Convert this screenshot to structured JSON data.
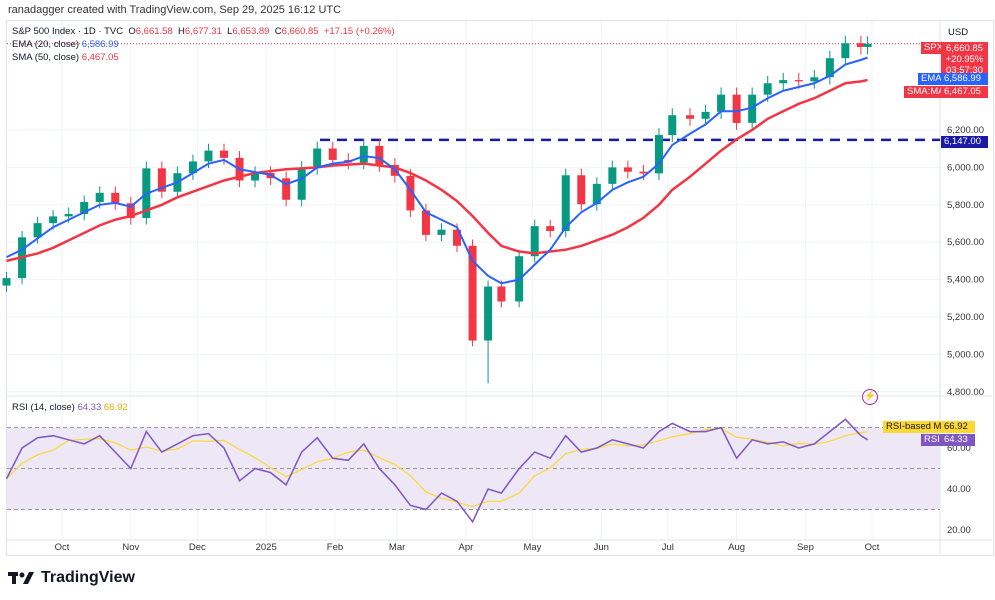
{
  "credit": "ranadagger created with TradingView.com, Sep 29, 2025 16:12 UTC",
  "legend": {
    "symbol": "S&P 500 Index · 1D · TVC",
    "open_label": "O",
    "open": "6,661.58",
    "high_label": "H",
    "high": "6,677.31",
    "low_label": "L",
    "low": "6,653.89",
    "close_label": "C",
    "close": "6,660.85",
    "change": "+17.15 (+0.26%)",
    "ema_label": "EMA (20, close)",
    "ema_value": "6,586.99",
    "sma_label": "SMA (50, close)",
    "sma_value": "6,467.05",
    "rsi_label": "RSI (14, close)",
    "rsi_value": "64.33",
    "rsi_ma_value": "66.92"
  },
  "price_axis": {
    "currency": "USD",
    "ticks": [
      "6,200.00",
      "6,000.00",
      "5,800.00",
      "5,600.00",
      "5,400.00",
      "5,200.00",
      "5,000.00",
      "4,800.00"
    ],
    "tick_values": [
      6200,
      6000,
      5800,
      5600,
      5400,
      5200,
      5000,
      4800
    ],
    "tags": {
      "spx_label": "SPX",
      "spx_price": "6,660.85",
      "spx_change": "+20.95%",
      "spx_countdown": "03:57:30",
      "ema_label": "EMA",
      "ema_price": "6,586.99",
      "sma_label": "SMA:MA",
      "sma_price": "6,467.05",
      "level_price": "6,147.00"
    }
  },
  "rsi_axis": {
    "ticks": [
      "60.00",
      "40.00",
      "20.00"
    ],
    "tick_values": [
      60,
      40,
      20
    ],
    "tags": {
      "ma_label": "RSI-based MA",
      "ma_value": "66.92",
      "rsi_label": "RSI",
      "rsi_value": "64.33"
    }
  },
  "time_axis": {
    "labels": [
      "Oct",
      "Nov",
      "Dec",
      "2025",
      "Feb",
      "Mar",
      "Apr",
      "May",
      "Jun",
      "Jul",
      "Aug",
      "Sep",
      "Oct"
    ],
    "dates": [
      "2024-10-01",
      "2024-11-01",
      "2024-12-01",
      "2025-01-01",
      "2025-02-01",
      "2025-03-01",
      "2025-04-01",
      "2025-05-01",
      "2025-06-01",
      "2025-07-01",
      "2025-08-01",
      "2025-09-01",
      "2025-10-01"
    ]
  },
  "logo": "TradingView",
  "colors": {
    "up": "#089981",
    "down": "#f23645",
    "ema": "#2962ff",
    "sma": "#f23645",
    "level": "#1a1aa6",
    "rsi": "#7e57c2",
    "rsi_ma": "#fdd835",
    "rsi_band": "#ede7f6"
  },
  "chart_data": {
    "type": "candlestick",
    "ylim": [
      4700,
      6750
    ],
    "rsi_ylim": [
      15,
      80
    ],
    "rsi_bands": [
      70,
      50,
      30
    ],
    "horizontal_level": 6147,
    "dates": [
      "2024-09-06",
      "2024-09-13",
      "2024-09-20",
      "2024-09-27",
      "2024-10-04",
      "2024-10-11",
      "2024-10-18",
      "2024-10-25",
      "2024-11-01",
      "2024-11-08",
      "2024-11-15",
      "2024-11-22",
      "2024-11-29",
      "2024-12-06",
      "2024-12-13",
      "2024-12-20",
      "2024-12-27",
      "2025-01-03",
      "2025-01-10",
      "2025-01-17",
      "2025-01-24",
      "2025-01-31",
      "2025-02-07",
      "2025-02-14",
      "2025-02-21",
      "2025-02-28",
      "2025-03-07",
      "2025-03-14",
      "2025-03-21",
      "2025-03-28",
      "2025-04-04",
      "2025-04-11",
      "2025-04-17",
      "2025-04-25",
      "2025-05-02",
      "2025-05-09",
      "2025-05-16",
      "2025-05-23",
      "2025-05-30",
      "2025-06-06",
      "2025-06-13",
      "2025-06-20",
      "2025-06-27",
      "2025-07-03",
      "2025-07-11",
      "2025-07-18",
      "2025-07-25",
      "2025-08-01",
      "2025-08-08",
      "2025-08-15",
      "2025-08-22",
      "2025-08-29",
      "2025-09-05",
      "2025-09-12",
      "2025-09-19",
      "2025-09-26",
      "2025-09-29"
    ],
    "close": [
      5408,
      5626,
      5702,
      5738,
      5751,
      5815,
      5864,
      5808,
      5729,
      5995,
      5870,
      5969,
      6032,
      6090,
      6051,
      5930,
      5970,
      5942,
      5827,
      5997,
      6101,
      6040,
      6026,
      6115,
      6013,
      5955,
      5770,
      5639,
      5667,
      5581,
      5074,
      5363,
      5283,
      5525,
      5686,
      5660,
      5958,
      5803,
      5912,
      6000,
      5977,
      5968,
      6173,
      6279,
      6260,
      6297,
      6389,
      6238,
      6389,
      6450,
      6467,
      6460,
      6482,
      6584,
      6664,
      6644,
      6661
    ],
    "ema20": [
      5520,
      5560,
      5620,
      5680,
      5720,
      5760,
      5800,
      5810,
      5790,
      5860,
      5890,
      5920,
      5970,
      6020,
      6040,
      5990,
      5975,
      5960,
      5910,
      5940,
      6000,
      6020,
      6030,
      6060,
      6050,
      5990,
      5880,
      5760,
      5720,
      5680,
      5500,
      5420,
      5380,
      5400,
      5480,
      5560,
      5680,
      5760,
      5810,
      5880,
      5920,
      5950,
      6020,
      6120,
      6180,
      6230,
      6300,
      6300,
      6320,
      6370,
      6410,
      6430,
      6450,
      6490,
      6550,
      6575,
      6587
    ],
    "sma50": [
      5500,
      5520,
      5540,
      5570,
      5610,
      5650,
      5690,
      5720,
      5740,
      5770,
      5800,
      5840,
      5870,
      5900,
      5930,
      5950,
      5970,
      5980,
      5990,
      5995,
      6000,
      6010,
      6015,
      6020,
      6010,
      6000,
      5970,
      5930,
      5880,
      5820,
      5740,
      5650,
      5580,
      5550,
      5540,
      5550,
      5560,
      5580,
      5610,
      5640,
      5680,
      5730,
      5800,
      5880,
      5950,
      6020,
      6090,
      6150,
      6200,
      6260,
      6300,
      6340,
      6370,
      6410,
      6450,
      6460,
      6467
    ],
    "rsi": [
      45,
      60,
      65,
      66,
      64,
      62,
      66,
      58,
      50,
      68,
      58,
      62,
      66,
      67,
      60,
      44,
      50,
      48,
      42,
      58,
      65,
      55,
      54,
      62,
      50,
      42,
      32,
      30,
      38,
      34,
      24,
      40,
      38,
      50,
      58,
      55,
      66,
      58,
      60,
      64,
      62,
      60,
      68,
      72,
      68,
      68,
      70,
      55,
      64,
      62,
      63,
      60,
      62,
      68,
      74,
      66,
      64
    ]
  }
}
